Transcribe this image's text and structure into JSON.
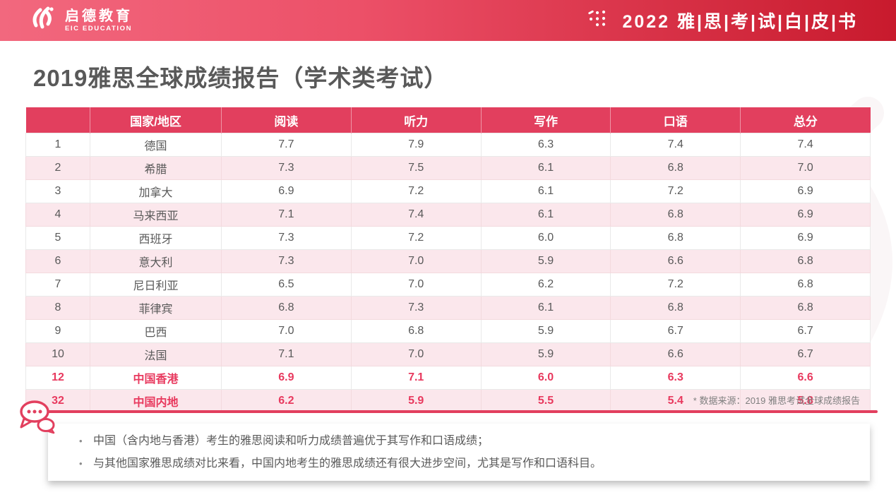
{
  "header": {
    "logo_cn": "启德教育",
    "logo_en": "EIC EDUCATION",
    "right_title": "2022 雅|思|考|试|白|皮|书"
  },
  "page_title": "2019雅思全球成绩报告（学术类考试）",
  "table": {
    "columns": [
      "",
      "国家/地区",
      "阅读",
      "听力",
      "写作",
      "口语",
      "总分"
    ],
    "rows": [
      {
        "rank": "1",
        "country": "德国",
        "reading": "7.7",
        "listening": "7.9",
        "writing": "6.3",
        "speaking": "7.4",
        "total": "7.4",
        "highlight": false
      },
      {
        "rank": "2",
        "country": "希腊",
        "reading": "7.3",
        "listening": "7.5",
        "writing": "6.1",
        "speaking": "6.8",
        "total": "7.0",
        "highlight": false
      },
      {
        "rank": "3",
        "country": "加拿大",
        "reading": "6.9",
        "listening": "7.2",
        "writing": "6.1",
        "speaking": "7.2",
        "total": "6.9",
        "highlight": false
      },
      {
        "rank": "4",
        "country": "马来西亚",
        "reading": "7.1",
        "listening": "7.4",
        "writing": "6.1",
        "speaking": "6.8",
        "total": "6.9",
        "highlight": false
      },
      {
        "rank": "5",
        "country": "西班牙",
        "reading": "7.3",
        "listening": "7.2",
        "writing": "6.0",
        "speaking": "6.8",
        "total": "6.9",
        "highlight": false
      },
      {
        "rank": "6",
        "country": "意大利",
        "reading": "7.3",
        "listening": "7.0",
        "writing": "5.9",
        "speaking": "6.6",
        "total": "6.8",
        "highlight": false
      },
      {
        "rank": "7",
        "country": "尼日利亚",
        "reading": "6.5",
        "listening": "7.0",
        "writing": "6.2",
        "speaking": "7.2",
        "total": "6.8",
        "highlight": false
      },
      {
        "rank": "8",
        "country": "菲律宾",
        "reading": "6.8",
        "listening": "7.3",
        "writing": "6.1",
        "speaking": "6.8",
        "total": "6.8",
        "highlight": false
      },
      {
        "rank": "9",
        "country": "巴西",
        "reading": "7.0",
        "listening": "6.8",
        "writing": "5.9",
        "speaking": "6.7",
        "total": "6.7",
        "highlight": false
      },
      {
        "rank": "10",
        "country": "法国",
        "reading": "7.1",
        "listening": "7.0",
        "writing": "5.9",
        "speaking": "6.6",
        "total": "6.7",
        "highlight": false
      },
      {
        "rank": "12",
        "country": "中国香港",
        "reading": "6.9",
        "listening": "7.1",
        "writing": "6.0",
        "speaking": "6.3",
        "total": "6.6",
        "highlight": true
      },
      {
        "rank": "32",
        "country": "中国内地",
        "reading": "6.2",
        "listening": "5.9",
        "writing": "5.5",
        "speaking": "5.4",
        "total": "5.8",
        "highlight": true
      }
    ]
  },
  "footnote": "* 数据来源：2019 雅思考试全球成绩报告",
  "notes": [
    "中国（含内地与香港）考生的雅思阅读和听力成绩普遍优于其写作和口语成绩；",
    "与其他国家雅思成绩对比来看，中国内地考生的雅思成绩还有很大进步空间，尤其是写作和口语科目。"
  ],
  "colors": {
    "accent": "#e23f5e",
    "header_gradient_start": "#f2687e",
    "header_gradient_end": "#c81a2d",
    "row_alt_pink": "#fbe7ec",
    "highlight_text": "#e8395e",
    "body_text": "#595959"
  }
}
